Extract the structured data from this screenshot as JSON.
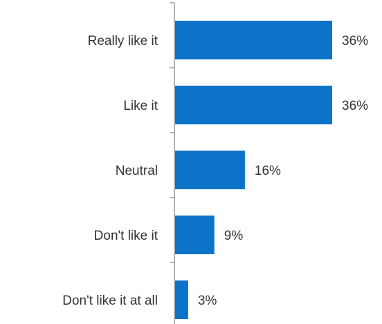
{
  "chart_data": {
    "type": "bar",
    "orientation": "horizontal",
    "categories": [
      "Really like it",
      "Like it",
      "Neutral",
      "Don't like it",
      "Don't like it at all"
    ],
    "values": [
      36,
      36,
      16,
      9,
      3
    ],
    "value_labels": [
      "36%",
      "36%",
      "16%",
      "9%",
      "3%"
    ],
    "title": "",
    "xlabel": "",
    "ylabel": "",
    "xlim": [
      0,
      36
    ],
    "grid": false,
    "legend": "none",
    "bar_color": "#0b74c8"
  }
}
